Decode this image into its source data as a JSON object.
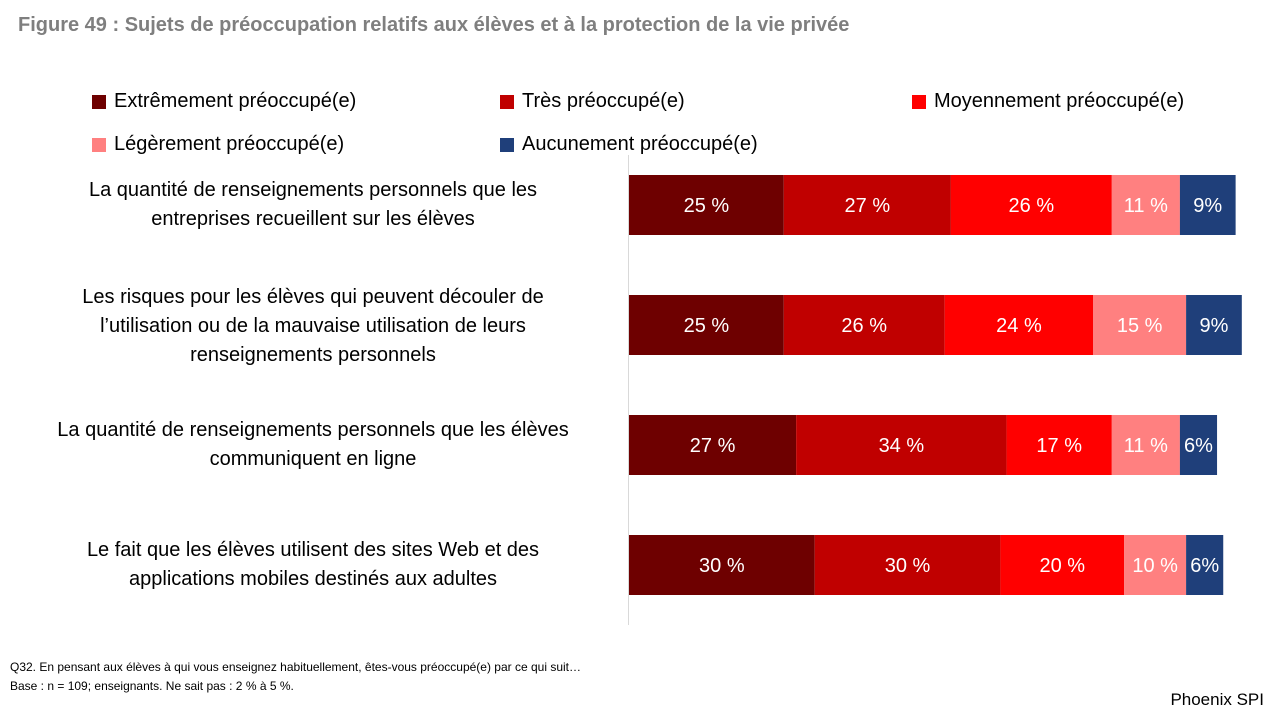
{
  "title": "Figure 49 : Sujets de préoccupation relatifs aux élèves et à la protection de la vie privée",
  "legend": [
    {
      "label": "Extrêmement préoccupé(e)",
      "color": "#6e0000"
    },
    {
      "label": "Très préoccupé(e)",
      "color": "#c00000"
    },
    {
      "label": "Moyennement préoccupé(e)",
      "color": "#ff0000"
    },
    {
      "label": "Légèrement préoccupé(e)",
      "color": "#ff8080"
    },
    {
      "label": "Aucunement préoccupé(e)",
      "color": "#1f3f7a"
    }
  ],
  "chart_data": {
    "type": "bar",
    "orientation": "horizontal",
    "stacked": true,
    "title": "Figure 49 : Sujets de préoccupation relatifs aux élèves et à la protection de la vie privée",
    "categories": [
      "La quantité de renseignements personnels que les entreprises recueillent sur les élèves",
      "Les risques pour les élèves qui peuvent découler de l’utilisation ou de la mauvaise utilisation de leurs renseignements personnels",
      "La quantité de renseignements personnels que les élèves communiquent en ligne",
      "Le fait que les élèves utilisent des sites Web et des applications mobiles destinés aux adultes"
    ],
    "series": [
      {
        "name": "Extrêmement préoccupé(e)",
        "values": [
          25,
          25,
          27,
          30
        ],
        "labels": [
          "25 %",
          "25 %",
          "27 %",
          "30 %"
        ]
      },
      {
        "name": "Très préoccupé(e)",
        "values": [
          27,
          26,
          34,
          30
        ],
        "labels": [
          "27 %",
          "26 %",
          "34 %",
          "30 %"
        ]
      },
      {
        "name": "Moyennement préoccupé(e)",
        "values": [
          26,
          24,
          17,
          20
        ],
        "labels": [
          "26 %",
          "24 %",
          "17 %",
          "20 %"
        ]
      },
      {
        "name": "Légèrement préoccupé(e)",
        "values": [
          11,
          15,
          11,
          10
        ],
        "labels": [
          "11 %",
          "15 %",
          "11 %",
          "10 %"
        ]
      },
      {
        "name": "Aucunement préoccupé(e)",
        "values": [
          9,
          9,
          6,
          6
        ],
        "labels": [
          "9%",
          "9%",
          "6%",
          "6%"
        ]
      }
    ],
    "xlim": [
      0,
      100
    ],
    "xlabel": "",
    "ylabel": "",
    "legend_position": "top"
  },
  "category_lines": [
    [
      "La quantité de renseignements personnels que les",
      "entreprises recueillent sur les élèves"
    ],
    [
      "Les risques pour les élèves qui peuvent découler de",
      "l’utilisation ou de la mauvaise utilisation de leurs",
      "renseignements personnels"
    ],
    [
      "La quantité de renseignements personnels que les élèves",
      "communiquent en ligne"
    ],
    [
      "Le fait que les élèves utilisent des sites Web et des",
      "applications mobiles destinés aux adultes"
    ]
  ],
  "footnotes": {
    "question": "Q32. En pensant aux élèves à qui vous enseignez habituellement, êtes-vous préoccupé(e) par ce qui suit…",
    "base": "Base : n = 109; enseignants. Ne sait pas : 2 % à 5 %."
  },
  "brand": "Phoenix SPI"
}
